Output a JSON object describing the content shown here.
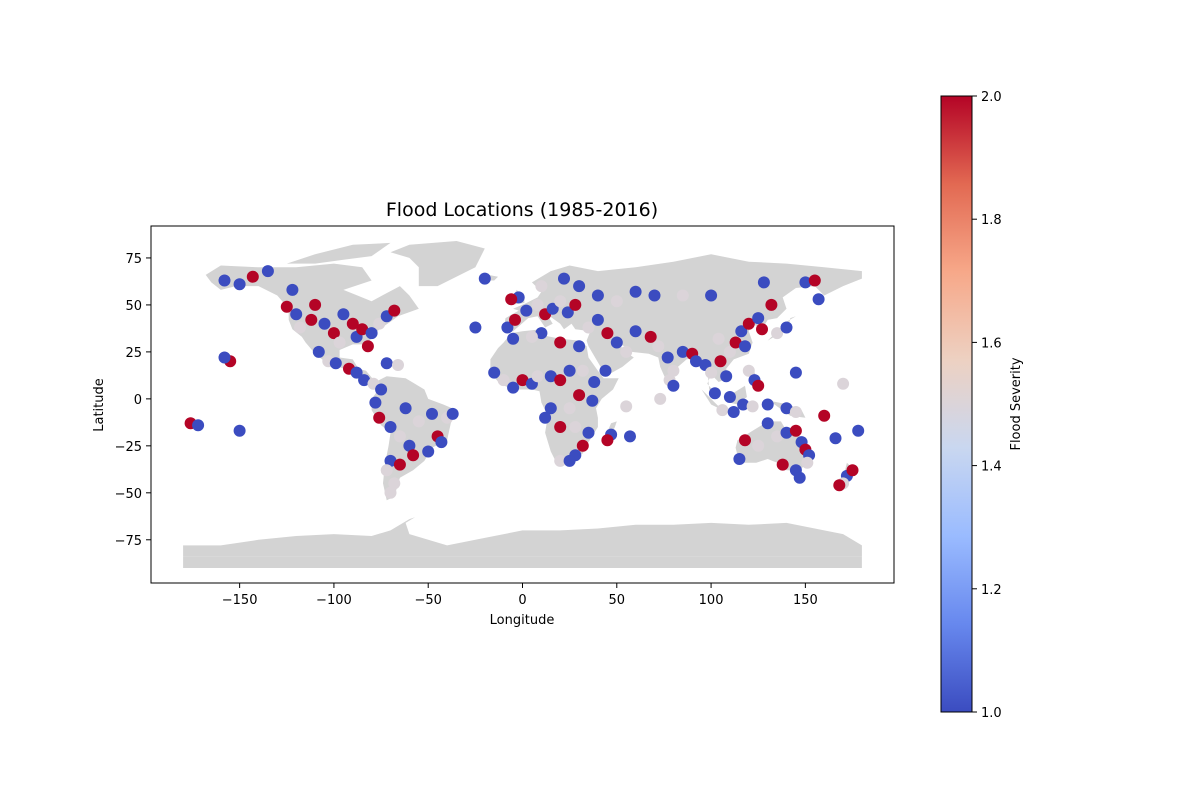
{
  "chart_data": {
    "type": "scatter",
    "title": "Flood Locations (1985-2016)",
    "xlabel": "Longitude",
    "ylabel": "Latitude",
    "xlim": [
      -197,
      197
    ],
    "ylim": [
      -98,
      92
    ],
    "xticks": [
      -150,
      -100,
      -50,
      0,
      50,
      100,
      150
    ],
    "yticks": [
      -75,
      -50,
      -25,
      0,
      25,
      50,
      75
    ],
    "xtick_labels": [
      "−150",
      "−100",
      "−50",
      "0",
      "50",
      "100",
      "150"
    ],
    "ytick_labels": [
      "−75",
      "−50",
      "−25",
      "0",
      "25",
      "50",
      "75"
    ],
    "grid": false,
    "land_color": "#d3d3d3",
    "colormap": "coolwarm",
    "colorbar": {
      "label": "Flood Severity",
      "min": 1.0,
      "max": 2.0,
      "ticks": [
        1.0,
        1.2,
        1.4,
        1.6,
        1.8,
        2.0
      ],
      "tick_labels": [
        "1.0",
        "1.2",
        "1.4",
        "1.6",
        "1.8",
        "2.0"
      ],
      "colors": [
        "#3b4cc0",
        "#6788ee",
        "#9abbff",
        "#c9d7f0",
        "#edd1c2",
        "#f7a889",
        "#e26952",
        "#b40426"
      ]
    },
    "points": [
      {
        "lon": -158,
        "lat": 63,
        "s": 1
      },
      {
        "lon": -150,
        "lat": 61,
        "s": 1
      },
      {
        "lon": -143,
        "lat": 65,
        "s": 2
      },
      {
        "lon": -135,
        "lat": 68,
        "s": 1
      },
      {
        "lon": -122,
        "lat": 58,
        "s": 1
      },
      {
        "lon": -125,
        "lat": 49,
        "s": 2
      },
      {
        "lon": -120,
        "lat": 45,
        "s": 1
      },
      {
        "lon": -118,
        "lat": 38,
        "s": 1.5
      },
      {
        "lon": -112,
        "lat": 42,
        "s": 2
      },
      {
        "lon": -110,
        "lat": 50,
        "s": 2
      },
      {
        "lon": -105,
        "lat": 40,
        "s": 1
      },
      {
        "lon": -100,
        "lat": 35,
        "s": 2
      },
      {
        "lon": -97,
        "lat": 30,
        "s": 1.5
      },
      {
        "lon": -95,
        "lat": 45,
        "s": 1
      },
      {
        "lon": -90,
        "lat": 40,
        "s": 2
      },
      {
        "lon": -88,
        "lat": 33,
        "s": 1
      },
      {
        "lon": -85,
        "lat": 37,
        "s": 2
      },
      {
        "lon": -82,
        "lat": 28,
        "s": 2
      },
      {
        "lon": -80,
        "lat": 35,
        "s": 1
      },
      {
        "lon": -76,
        "lat": 40,
        "s": 1.5
      },
      {
        "lon": -72,
        "lat": 44,
        "s": 1
      },
      {
        "lon": -68,
        "lat": 47,
        "s": 2
      },
      {
        "lon": -108,
        "lat": 25,
        "s": 1
      },
      {
        "lon": -103,
        "lat": 20,
        "s": 1.5
      },
      {
        "lon": -99,
        "lat": 19,
        "s": 1
      },
      {
        "lon": -92,
        "lat": 16,
        "s": 2
      },
      {
        "lon": -88,
        "lat": 14,
        "s": 1
      },
      {
        "lon": -84,
        "lat": 10,
        "s": 1
      },
      {
        "lon": -79,
        "lat": 8,
        "s": 1.5
      },
      {
        "lon": -75,
        "lat": 5,
        "s": 1
      },
      {
        "lon": -72,
        "lat": 19,
        "s": 1
      },
      {
        "lon": -66,
        "lat": 18,
        "s": 1.5
      },
      {
        "lon": -155,
        "lat": 20,
        "s": 2
      },
      {
        "lon": -158,
        "lat": 22,
        "s": 1
      },
      {
        "lon": -176,
        "lat": -13,
        "s": 2
      },
      {
        "lon": -172,
        "lat": -14,
        "s": 1
      },
      {
        "lon": -150,
        "lat": -17,
        "s": 1
      },
      {
        "lon": -78,
        "lat": -2,
        "s": 1
      },
      {
        "lon": -76,
        "lat": -10,
        "s": 2
      },
      {
        "lon": -70,
        "lat": -15,
        "s": 1
      },
      {
        "lon": -65,
        "lat": -20,
        "s": 1.5
      },
      {
        "lon": -60,
        "lat": -25,
        "s": 1
      },
      {
        "lon": -58,
        "lat": -30,
        "s": 2
      },
      {
        "lon": -62,
        "lat": -5,
        "s": 1
      },
      {
        "lon": -55,
        "lat": -12,
        "s": 1.5
      },
      {
        "lon": -48,
        "lat": -8,
        "s": 1
      },
      {
        "lon": -45,
        "lat": -20,
        "s": 2
      },
      {
        "lon": -43,
        "lat": -23,
        "s": 1
      },
      {
        "lon": -40,
        "lat": -10,
        "s": 1.5
      },
      {
        "lon": -37,
        "lat": -8,
        "s": 1
      },
      {
        "lon": -50,
        "lat": -28,
        "s": 1
      },
      {
        "lon": -70,
        "lat": -33,
        "s": 1
      },
      {
        "lon": -72,
        "lat": -38,
        "s": 1.5
      },
      {
        "lon": -68,
        "lat": -45,
        "s": 1.5
      },
      {
        "lon": -70,
        "lat": -50,
        "s": 1.5
      },
      {
        "lon": -65,
        "lat": -35,
        "s": 2
      },
      {
        "lon": -8,
        "lat": 38,
        "s": 1
      },
      {
        "lon": -4,
        "lat": 42,
        "s": 2
      },
      {
        "lon": 2,
        "lat": 47,
        "s": 1
      },
      {
        "lon": 8,
        "lat": 50,
        "s": 1.5
      },
      {
        "lon": 12,
        "lat": 45,
        "s": 2
      },
      {
        "lon": 16,
        "lat": 48,
        "s": 1
      },
      {
        "lon": 20,
        "lat": 52,
        "s": 1.5
      },
      {
        "lon": 24,
        "lat": 46,
        "s": 1
      },
      {
        "lon": 28,
        "lat": 50,
        "s": 2
      },
      {
        "lon": 30,
        "lat": 60,
        "s": 1
      },
      {
        "lon": 10,
        "lat": 60,
        "s": 1.5
      },
      {
        "lon": 22,
        "lat": 64,
        "s": 1
      },
      {
        "lon": -2,
        "lat": 54,
        "s": 1
      },
      {
        "lon": -6,
        "lat": 53,
        "s": 2
      },
      {
        "lon": -20,
        "lat": 64,
        "s": 1
      },
      {
        "lon": 35,
        "lat": 38,
        "s": 1.5
      },
      {
        "lon": 40,
        "lat": 42,
        "s": 1
      },
      {
        "lon": 45,
        "lat": 35,
        "s": 2
      },
      {
        "lon": 50,
        "lat": 30,
        "s": 1
      },
      {
        "lon": 55,
        "lat": 25,
        "s": 1.5
      },
      {
        "lon": 44,
        "lat": 15,
        "s": 1
      },
      {
        "lon": 60,
        "lat": 36,
        "s": 1
      },
      {
        "lon": 68,
        "lat": 33,
        "s": 2
      },
      {
        "lon": 72,
        "lat": 28,
        "s": 1.5
      },
      {
        "lon": 77,
        "lat": 22,
        "s": 1
      },
      {
        "lon": 80,
        "lat": 15,
        "s": 1.5
      },
      {
        "lon": 85,
        "lat": 25,
        "s": 1
      },
      {
        "lon": 90,
        "lat": 24,
        "s": 2
      },
      {
        "lon": 92,
        "lat": 20,
        "s": 1
      },
      {
        "lon": 78,
        "lat": 10,
        "s": 1.5
      },
      {
        "lon": 80,
        "lat": 7,
        "s": 1
      },
      {
        "lon": 97,
        "lat": 18,
        "s": 1
      },
      {
        "lon": 100,
        "lat": 14,
        "s": 1.5
      },
      {
        "lon": 105,
        "lat": 20,
        "s": 2
      },
      {
        "lon": 108,
        "lat": 12,
        "s": 1
      },
      {
        "lon": 110,
        "lat": 25,
        "s": 1.5
      },
      {
        "lon": 113,
        "lat": 30,
        "s": 2
      },
      {
        "lon": 116,
        "lat": 36,
        "s": 1
      },
      {
        "lon": 120,
        "lat": 40,
        "s": 2
      },
      {
        "lon": 118,
        "lat": 28,
        "s": 1
      },
      {
        "lon": 104,
        "lat": 32,
        "s": 1.5
      },
      {
        "lon": 125,
        "lat": 43,
        "s": 1
      },
      {
        "lon": 127,
        "lat": 37,
        "s": 2
      },
      {
        "lon": 135,
        "lat": 35,
        "s": 1.5
      },
      {
        "lon": 140,
        "lat": 38,
        "s": 1
      },
      {
        "lon": 132,
        "lat": 50,
        "s": 2
      },
      {
        "lon": 128,
        "lat": 62,
        "s": 1
      },
      {
        "lon": 100,
        "lat": 55,
        "s": 1
      },
      {
        "lon": 85,
        "lat": 55,
        "s": 1.5
      },
      {
        "lon": 70,
        "lat": 55,
        "s": 1
      },
      {
        "lon": 60,
        "lat": 57,
        "s": 1
      },
      {
        "lon": 50,
        "lat": 52,
        "s": 1.5
      },
      {
        "lon": 40,
        "lat": 55,
        "s": 1
      },
      {
        "lon": 120,
        "lat": 15,
        "s": 1.5
      },
      {
        "lon": 123,
        "lat": 10,
        "s": 1
      },
      {
        "lon": 125,
        "lat": 7,
        "s": 2
      },
      {
        "lon": 110,
        "lat": 1,
        "s": 1
      },
      {
        "lon": 102,
        "lat": 3,
        "s": 1
      },
      {
        "lon": 106,
        "lat": -6,
        "s": 1.5
      },
      {
        "lon": 112,
        "lat": -7,
        "s": 1
      },
      {
        "lon": 117,
        "lat": -3,
        "s": 1
      },
      {
        "lon": 122,
        "lat": -4,
        "s": 1.5
      },
      {
        "lon": 130,
        "lat": -3,
        "s": 1
      },
      {
        "lon": 140,
        "lat": -5,
        "s": 1
      },
      {
        "lon": 145,
        "lat": -7,
        "s": 1.5
      },
      {
        "lon": 145,
        "lat": 14,
        "s": 1
      },
      {
        "lon": 157,
        "lat": 53,
        "s": 1
      },
      {
        "lon": 150,
        "lat": 62,
        "s": 1
      },
      {
        "lon": 155,
        "lat": 63,
        "s": 2
      },
      {
        "lon": 170,
        "lat": 8,
        "s": 1.5
      },
      {
        "lon": 160,
        "lat": -9,
        "s": 2
      },
      {
        "lon": 178,
        "lat": -17,
        "s": 1
      },
      {
        "lon": 166,
        "lat": -21,
        "s": 1
      },
      {
        "lon": 172,
        "lat": -41,
        "s": 1
      },
      {
        "lon": 175,
        "lat": -38,
        "s": 2
      },
      {
        "lon": 170,
        "lat": -45,
        "s": 1.5
      },
      {
        "lon": 168,
        "lat": -46,
        "s": 2
      },
      {
        "lon": 115,
        "lat": -32,
        "s": 1
      },
      {
        "lon": 118,
        "lat": -22,
        "s": 2
      },
      {
        "lon": 130,
        "lat": -13,
        "s": 1
      },
      {
        "lon": 135,
        "lat": -20,
        "s": 1.5
      },
      {
        "lon": 140,
        "lat": -18,
        "s": 1
      },
      {
        "lon": 145,
        "lat": -17,
        "s": 2
      },
      {
        "lon": 148,
        "lat": -23,
        "s": 1
      },
      {
        "lon": 150,
        "lat": -27,
        "s": 2
      },
      {
        "lon": 152,
        "lat": -30,
        "s": 1
      },
      {
        "lon": 151,
        "lat": -34,
        "s": 1.5
      },
      {
        "lon": 145,
        "lat": -38,
        "s": 1
      },
      {
        "lon": 147,
        "lat": -42,
        "s": 1
      },
      {
        "lon": 138,
        "lat": -35,
        "s": 2
      },
      {
        "lon": 125,
        "lat": -25,
        "s": 1.5
      },
      {
        "lon": -15,
        "lat": 14,
        "s": 1
      },
      {
        "lon": -10,
        "lat": 10,
        "s": 1.5
      },
      {
        "lon": -5,
        "lat": 6,
        "s": 1
      },
      {
        "lon": 0,
        "lat": 10,
        "s": 2
      },
      {
        "lon": 5,
        "lat": 8,
        "s": 1
      },
      {
        "lon": 8,
        "lat": 12,
        "s": 1.5
      },
      {
        "lon": 15,
        "lat": 12,
        "s": 1
      },
      {
        "lon": 20,
        "lat": 10,
        "s": 2
      },
      {
        "lon": 25,
        "lat": 15,
        "s": 1
      },
      {
        "lon": 32,
        "lat": 15,
        "s": 1.5
      },
      {
        "lon": 38,
        "lat": 9,
        "s": 1
      },
      {
        "lon": 30,
        "lat": 2,
        "s": 2
      },
      {
        "lon": 37,
        "lat": -1,
        "s": 1
      },
      {
        "lon": 25,
        "lat": -5,
        "s": 1.5
      },
      {
        "lon": 15,
        "lat": -5,
        "s": 1
      },
      {
        "lon": 12,
        "lat": -10,
        "s": 1
      },
      {
        "lon": 20,
        "lat": -15,
        "s": 2
      },
      {
        "lon": 28,
        "lat": -15,
        "s": 1.5
      },
      {
        "lon": 35,
        "lat": -18,
        "s": 1
      },
      {
        "lon": 32,
        "lat": -25,
        "s": 2
      },
      {
        "lon": 28,
        "lat": -30,
        "s": 1
      },
      {
        "lon": 20,
        "lat": -33,
        "s": 1.5
      },
      {
        "lon": 25,
        "lat": -33,
        "s": 1
      },
      {
        "lon": 47,
        "lat": -19,
        "s": 1
      },
      {
        "lon": 45,
        "lat": -22,
        "s": 2
      },
      {
        "lon": 57,
        "lat": -20,
        "s": 1
      },
      {
        "lon": 55,
        "lat": -4,
        "s": 1.5
      },
      {
        "lon": 10,
        "lat": 35,
        "s": 1
      },
      {
        "lon": 5,
        "lat": 33,
        "s": 1.5
      },
      {
        "lon": -5,
        "lat": 32,
        "s": 1
      },
      {
        "lon": 30,
        "lat": 28,
        "s": 1
      },
      {
        "lon": 20,
        "lat": 30,
        "s": 2
      },
      {
        "lon": 73,
        "lat": 0,
        "s": 1.5
      },
      {
        "lon": -25,
        "lat": 38,
        "s": 1
      }
    ]
  }
}
